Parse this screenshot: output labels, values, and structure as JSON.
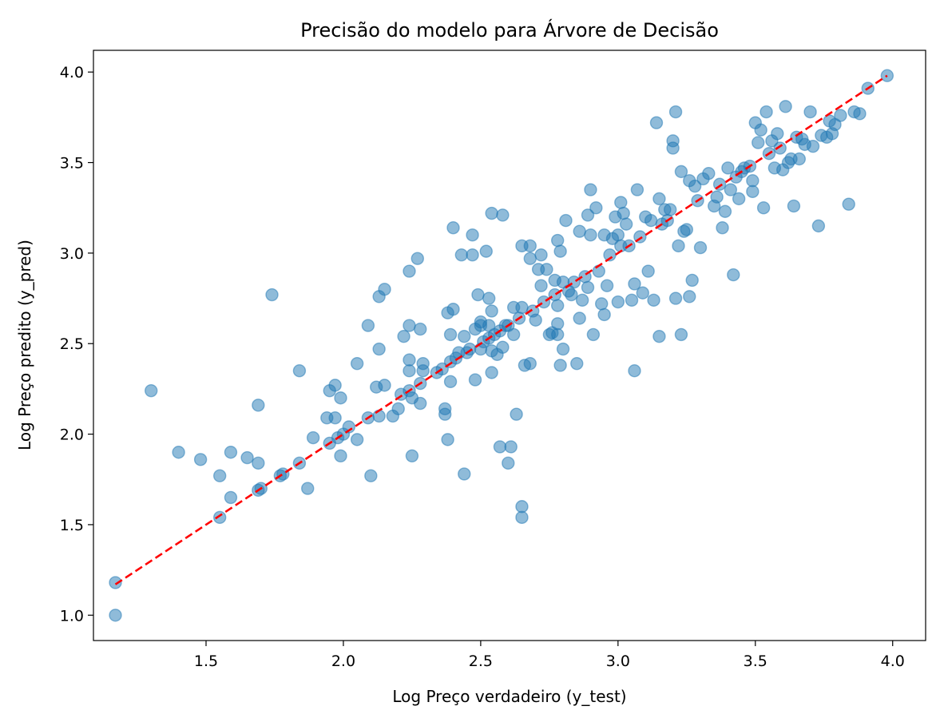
{
  "chart_data": {
    "type": "scatter",
    "title": "Precisão do modelo para Árvore de Decisão",
    "xlabel": "Log Preço verdadeiro (y_test)",
    "ylabel": "Log Preço predito (y_pred)",
    "xlim": [
      1.09,
      4.12
    ],
    "ylim": [
      0.86,
      4.12
    ],
    "xticks": [
      1.5,
      2.0,
      2.5,
      3.0,
      3.5,
      4.0
    ],
    "yticks": [
      1.0,
      1.5,
      2.0,
      2.5,
      3.0,
      3.5,
      4.0
    ],
    "xtick_labels": [
      "1.5",
      "2.0",
      "2.5",
      "3.0",
      "3.5",
      "4.0"
    ],
    "ytick_labels": [
      "1.0",
      "1.5",
      "2.0",
      "2.5",
      "3.0",
      "3.5",
      "4.0"
    ],
    "grid": false,
    "point_color": "#1f77b4",
    "point_alpha": 0.5,
    "reference_line": {
      "style": "dashed",
      "color": "#ff0000",
      "x": [
        1.17,
        3.98
      ],
      "y": [
        1.17,
        3.98
      ]
    },
    "points": [
      [
        1.17,
        1.18
      ],
      [
        1.17,
        1.0
      ],
      [
        1.3,
        2.24
      ],
      [
        1.4,
        1.9
      ],
      [
        1.48,
        1.86
      ],
      [
        1.55,
        1.77
      ],
      [
        1.55,
        1.54
      ],
      [
        1.59,
        1.9
      ],
      [
        1.59,
        1.65
      ],
      [
        1.65,
        1.87
      ],
      [
        1.69,
        1.84
      ],
      [
        1.69,
        1.69
      ],
      [
        1.7,
        1.7
      ],
      [
        1.69,
        2.16
      ],
      [
        1.74,
        2.77
      ],
      [
        1.77,
        1.77
      ],
      [
        1.78,
        1.78
      ],
      [
        1.84,
        1.84
      ],
      [
        1.84,
        2.35
      ],
      [
        1.87,
        1.7
      ],
      [
        1.89,
        1.98
      ],
      [
        1.94,
        2.09
      ],
      [
        1.95,
        1.95
      ],
      [
        1.95,
        2.24
      ],
      [
        1.97,
        2.27
      ],
      [
        1.97,
        2.09
      ],
      [
        1.98,
        1.98
      ],
      [
        1.99,
        2.2
      ],
      [
        2.0,
        2.0
      ],
      [
        1.99,
        1.88
      ],
      [
        2.02,
        2.04
      ],
      [
        2.05,
        2.39
      ],
      [
        2.05,
        1.97
      ],
      [
        2.09,
        2.6
      ],
      [
        2.09,
        2.09
      ],
      [
        2.1,
        1.77
      ],
      [
        2.12,
        2.26
      ],
      [
        2.13,
        2.47
      ],
      [
        2.13,
        2.76
      ],
      [
        2.13,
        2.1
      ],
      [
        2.15,
        2.27
      ],
      [
        2.15,
        2.8
      ],
      [
        2.18,
        2.1
      ],
      [
        2.2,
        2.14
      ],
      [
        2.21,
        2.22
      ],
      [
        2.22,
        2.54
      ],
      [
        2.24,
        2.24
      ],
      [
        2.24,
        2.6
      ],
      [
        2.24,
        2.9
      ],
      [
        2.24,
        2.41
      ],
      [
        2.24,
        2.35
      ],
      [
        2.25,
        1.88
      ],
      [
        2.25,
        2.2
      ],
      [
        2.27,
        2.97
      ],
      [
        2.28,
        2.58
      ],
      [
        2.28,
        2.17
      ],
      [
        2.28,
        2.28
      ],
      [
        2.29,
        2.35
      ],
      [
        2.29,
        2.39
      ],
      [
        2.34,
        2.34
      ],
      [
        2.36,
        2.36
      ],
      [
        2.37,
        2.14
      ],
      [
        2.37,
        2.11
      ],
      [
        2.38,
        2.67
      ],
      [
        2.38,
        1.97
      ],
      [
        2.39,
        2.29
      ],
      [
        2.39,
        2.55
      ],
      [
        2.39,
        2.4
      ],
      [
        2.4,
        3.14
      ],
      [
        2.4,
        2.69
      ],
      [
        2.41,
        2.42
      ],
      [
        2.42,
        2.45
      ],
      [
        2.43,
        2.99
      ],
      [
        2.44,
        2.54
      ],
      [
        2.44,
        1.78
      ],
      [
        2.45,
        2.45
      ],
      [
        2.46,
        2.47
      ],
      [
        2.47,
        3.1
      ],
      [
        2.47,
        2.99
      ],
      [
        2.48,
        2.58
      ],
      [
        2.48,
        2.3
      ],
      [
        2.49,
        2.77
      ],
      [
        2.5,
        2.6
      ],
      [
        2.5,
        2.47
      ],
      [
        2.5,
        2.62
      ],
      [
        2.51,
        2.51
      ],
      [
        2.52,
        3.01
      ],
      [
        2.53,
        2.53
      ],
      [
        2.53,
        2.6
      ],
      [
        2.53,
        2.75
      ],
      [
        2.54,
        3.22
      ],
      [
        2.54,
        2.68
      ],
      [
        2.54,
        2.46
      ],
      [
        2.54,
        2.34
      ],
      [
        2.55,
        2.55
      ],
      [
        2.56,
        2.44
      ],
      [
        2.57,
        2.57
      ],
      [
        2.57,
        1.93
      ],
      [
        2.58,
        2.48
      ],
      [
        2.58,
        3.21
      ],
      [
        2.59,
        2.6
      ],
      [
        2.6,
        1.84
      ],
      [
        2.6,
        2.6
      ],
      [
        2.61,
        1.93
      ],
      [
        2.62,
        2.7
      ],
      [
        2.62,
        2.55
      ],
      [
        2.63,
        2.11
      ],
      [
        2.64,
        2.64
      ],
      [
        2.65,
        1.54
      ],
      [
        2.65,
        1.6
      ],
      [
        2.65,
        3.04
      ],
      [
        2.65,
        2.7
      ],
      [
        2.66,
        2.38
      ],
      [
        2.68,
        3.04
      ],
      [
        2.68,
        2.97
      ],
      [
        2.68,
        2.39
      ],
      [
        2.69,
        2.68
      ],
      [
        2.7,
        2.63
      ],
      [
        2.71,
        2.91
      ],
      [
        2.72,
        2.99
      ],
      [
        2.72,
        2.82
      ],
      [
        2.73,
        2.73
      ],
      [
        2.74,
        2.91
      ],
      [
        2.75,
        2.55
      ],
      [
        2.76,
        2.56
      ],
      [
        2.77,
        2.77
      ],
      [
        2.77,
        2.85
      ],
      [
        2.78,
        3.07
      ],
      [
        2.78,
        2.71
      ],
      [
        2.78,
        2.61
      ],
      [
        2.78,
        2.55
      ],
      [
        2.79,
        3.01
      ],
      [
        2.79,
        2.38
      ],
      [
        2.8,
        2.47
      ],
      [
        2.8,
        2.84
      ],
      [
        2.81,
        3.18
      ],
      [
        2.82,
        2.79
      ],
      [
        2.83,
        2.77
      ],
      [
        2.84,
        2.84
      ],
      [
        2.85,
        2.39
      ],
      [
        2.86,
        2.64
      ],
      [
        2.86,
        3.12
      ],
      [
        2.87,
        2.74
      ],
      [
        2.88,
        2.87
      ],
      [
        2.89,
        3.21
      ],
      [
        2.89,
        2.81
      ],
      [
        2.9,
        3.35
      ],
      [
        2.9,
        3.1
      ],
      [
        2.91,
        2.55
      ],
      [
        2.92,
        3.25
      ],
      [
        2.93,
        2.9
      ],
      [
        2.94,
        2.72
      ],
      [
        2.95,
        3.1
      ],
      [
        2.95,
        2.66
      ],
      [
        2.96,
        2.82
      ],
      [
        2.97,
        2.99
      ],
      [
        2.98,
        3.08
      ],
      [
        2.99,
        3.2
      ],
      [
        3.0,
        3.1
      ],
      [
        3.0,
        2.73
      ],
      [
        3.01,
        3.28
      ],
      [
        3.01,
        3.04
      ],
      [
        3.02,
        3.22
      ],
      [
        3.03,
        3.16
      ],
      [
        3.04,
        3.04
      ],
      [
        3.05,
        2.74
      ],
      [
        3.06,
        2.83
      ],
      [
        3.06,
        2.35
      ],
      [
        3.07,
        3.35
      ],
      [
        3.08,
        3.09
      ],
      [
        3.09,
        2.78
      ],
      [
        3.1,
        3.2
      ],
      [
        3.11,
        2.9
      ],
      [
        3.12,
        3.18
      ],
      [
        3.13,
        2.74
      ],
      [
        3.14,
        3.72
      ],
      [
        3.15,
        3.3
      ],
      [
        3.15,
        2.54
      ],
      [
        3.16,
        3.16
      ],
      [
        3.17,
        3.24
      ],
      [
        3.18,
        3.18
      ],
      [
        3.19,
        3.24
      ],
      [
        3.2,
        3.62
      ],
      [
        3.2,
        3.58
      ],
      [
        3.21,
        3.78
      ],
      [
        3.21,
        2.75
      ],
      [
        3.22,
        3.04
      ],
      [
        3.23,
        3.45
      ],
      [
        3.23,
        2.55
      ],
      [
        3.24,
        3.12
      ],
      [
        3.25,
        3.13
      ],
      [
        3.26,
        3.4
      ],
      [
        3.26,
        2.76
      ],
      [
        3.27,
        2.85
      ],
      [
        3.28,
        3.37
      ],
      [
        3.29,
        3.29
      ],
      [
        3.3,
        3.03
      ],
      [
        3.31,
        3.41
      ],
      [
        3.33,
        3.44
      ],
      [
        3.35,
        3.26
      ],
      [
        3.36,
        3.31
      ],
      [
        3.37,
        3.38
      ],
      [
        3.38,
        3.14
      ],
      [
        3.39,
        3.23
      ],
      [
        3.4,
        3.47
      ],
      [
        3.41,
        3.35
      ],
      [
        3.42,
        2.88
      ],
      [
        3.43,
        3.42
      ],
      [
        3.44,
        3.3
      ],
      [
        3.45,
        3.45
      ],
      [
        3.46,
        3.47
      ],
      [
        3.48,
        3.48
      ],
      [
        3.49,
        3.4
      ],
      [
        3.49,
        3.34
      ],
      [
        3.5,
        3.72
      ],
      [
        3.51,
        3.61
      ],
      [
        3.52,
        3.68
      ],
      [
        3.53,
        3.25
      ],
      [
        3.54,
        3.78
      ],
      [
        3.55,
        3.55
      ],
      [
        3.56,
        3.62
      ],
      [
        3.57,
        3.47
      ],
      [
        3.58,
        3.66
      ],
      [
        3.59,
        3.58
      ],
      [
        3.6,
        3.46
      ],
      [
        3.61,
        3.81
      ],
      [
        3.62,
        3.5
      ],
      [
        3.63,
        3.52
      ],
      [
        3.64,
        3.26
      ],
      [
        3.65,
        3.64
      ],
      [
        3.66,
        3.52
      ],
      [
        3.67,
        3.63
      ],
      [
        3.68,
        3.6
      ],
      [
        3.7,
        3.78
      ],
      [
        3.71,
        3.59
      ],
      [
        3.73,
        3.15
      ],
      [
        3.74,
        3.65
      ],
      [
        3.76,
        3.64
      ],
      [
        3.77,
        3.73
      ],
      [
        3.78,
        3.66
      ],
      [
        3.79,
        3.71
      ],
      [
        3.81,
        3.76
      ],
      [
        3.84,
        3.27
      ],
      [
        3.86,
        3.78
      ],
      [
        3.88,
        3.77
      ],
      [
        3.91,
        3.91
      ],
      [
        3.98,
        3.98
      ]
    ]
  }
}
